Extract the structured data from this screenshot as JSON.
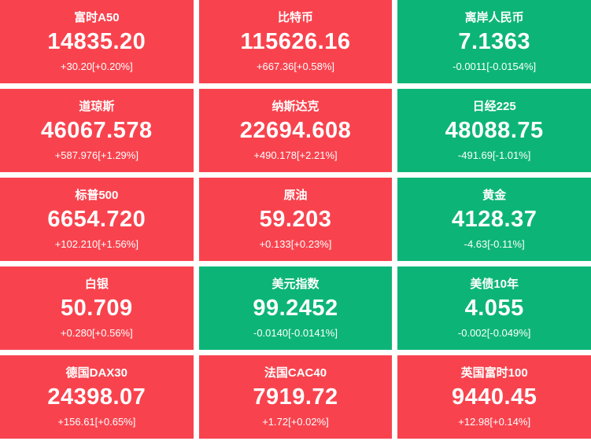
{
  "colors": {
    "up": "#f8434e",
    "down": "#0cb577",
    "text": "#ffffff",
    "background": "#ffffff"
  },
  "tiles": [
    {
      "name": "富时A50",
      "value": "14835.20",
      "change": "+30.20[+0.20%]",
      "direction": "up"
    },
    {
      "name": "比特币",
      "value": "115626.16",
      "change": "+667.36[+0.58%]",
      "direction": "up"
    },
    {
      "name": "离岸人民币",
      "value": "7.1363",
      "change": "-0.0011[-0.0154%]",
      "direction": "down"
    },
    {
      "name": "道琼斯",
      "value": "46067.578",
      "change": "+587.976[+1.29%]",
      "direction": "up"
    },
    {
      "name": "纳斯达克",
      "value": "22694.608",
      "change": "+490.178[+2.21%]",
      "direction": "up"
    },
    {
      "name": "日经225",
      "value": "48088.75",
      "change": "-491.69[-1.01%]",
      "direction": "down"
    },
    {
      "name": "标普500",
      "value": "6654.720",
      "change": "+102.210[+1.56%]",
      "direction": "up"
    },
    {
      "name": "原油",
      "value": "59.203",
      "change": "+0.133[+0.23%]",
      "direction": "up"
    },
    {
      "name": "黄金",
      "value": "4128.37",
      "change": "-4.63[-0.11%]",
      "direction": "down"
    },
    {
      "name": "白银",
      "value": "50.709",
      "change": "+0.280[+0.56%]",
      "direction": "up"
    },
    {
      "name": "美元指数",
      "value": "99.2452",
      "change": "-0.0140[-0.0141%]",
      "direction": "down"
    },
    {
      "name": "美债10年",
      "value": "4.055",
      "change": "-0.002[-0.049%]",
      "direction": "down"
    },
    {
      "name": "德国DAX30",
      "value": "24398.07",
      "change": "+156.61[+0.65%]",
      "direction": "up"
    },
    {
      "name": "法国CAC40",
      "value": "7919.72",
      "change": "+1.72[+0.02%]",
      "direction": "up"
    },
    {
      "name": "英国富时100",
      "value": "9440.45",
      "change": "+12.98[+0.14%]",
      "direction": "up"
    }
  ]
}
